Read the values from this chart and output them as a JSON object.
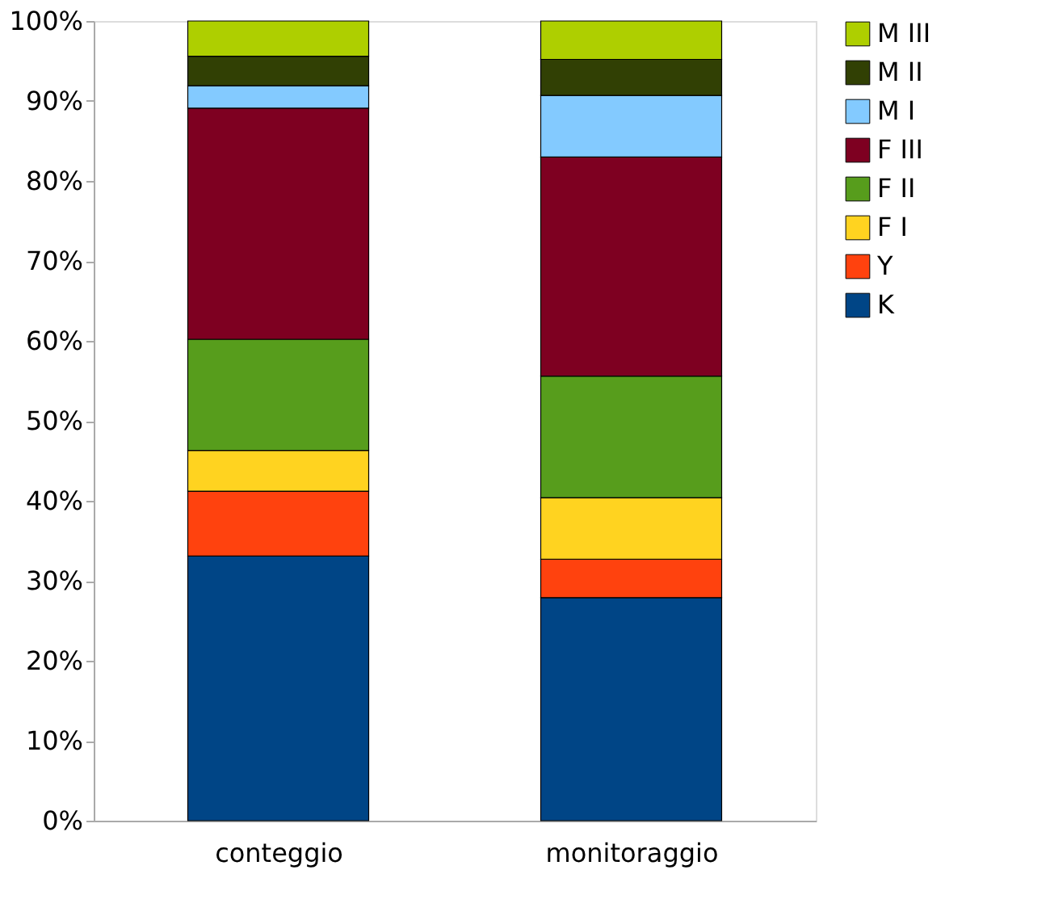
{
  "chart_data": {
    "type": "bar",
    "stacked": true,
    "categories": [
      "conteggio",
      "monitoraggio"
    ],
    "ylim": [
      0,
      100
    ],
    "yticks": [
      {
        "value": 0,
        "label": "0%"
      },
      {
        "value": 10,
        "label": "10%"
      },
      {
        "value": 20,
        "label": "20%"
      },
      {
        "value": 30,
        "label": "30%"
      },
      {
        "value": 40,
        "label": "40%"
      },
      {
        "value": 50,
        "label": "50%"
      },
      {
        "value": 60,
        "label": "60%"
      },
      {
        "value": 70,
        "label": "70%"
      },
      {
        "value": 80,
        "label": "80%"
      },
      {
        "value": 90,
        "label": "90%"
      },
      {
        "value": 100,
        "label": "100%"
      }
    ],
    "grid": false,
    "legend": "right",
    "series": [
      {
        "name": "K",
        "color": "#004586",
        "values": [
          33.1,
          27.9
        ]
      },
      {
        "name": "Y",
        "color": "#ff420e",
        "values": [
          8.1,
          4.8
        ]
      },
      {
        "name": "F I",
        "color": "#ffd320",
        "values": [
          5.1,
          7.7
        ]
      },
      {
        "name": "F II",
        "color": "#579d1c",
        "values": [
          13.9,
          15.2
        ]
      },
      {
        "name": "F III",
        "color": "#7e0021",
        "values": [
          28.9,
          27.4
        ]
      },
      {
        "name": "M I",
        "color": "#83caff",
        "values": [
          2.8,
          7.7
        ]
      },
      {
        "name": "M II",
        "color": "#314004",
        "values": [
          3.7,
          4.5
        ]
      },
      {
        "name": "M III",
        "color": "#aecf00",
        "values": [
          4.4,
          4.8
        ]
      }
    ]
  }
}
